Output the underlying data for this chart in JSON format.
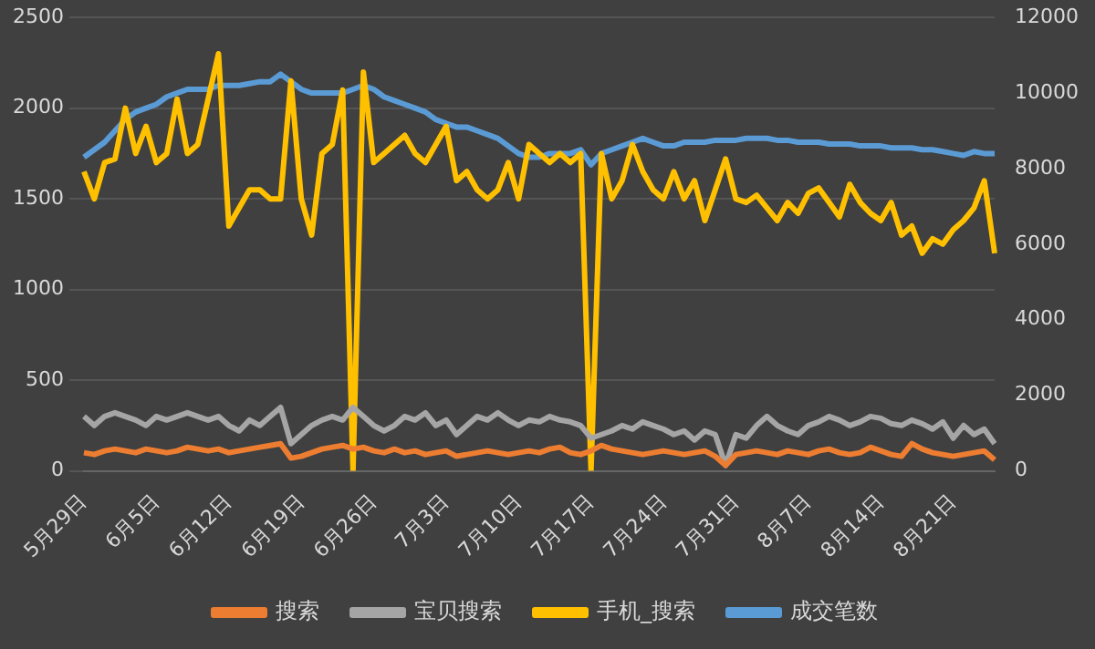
{
  "chart_data": {
    "type": "line",
    "categories": [
      "5月29日",
      null,
      null,
      null,
      null,
      null,
      null,
      "6月5日",
      null,
      null,
      null,
      null,
      null,
      null,
      "6月12日",
      null,
      null,
      null,
      null,
      null,
      null,
      "6月19日",
      null,
      null,
      null,
      null,
      null,
      null,
      "6月26日",
      null,
      null,
      null,
      null,
      null,
      null,
      "7月3日",
      null,
      null,
      null,
      null,
      null,
      null,
      "7月10日",
      null,
      null,
      null,
      null,
      null,
      null,
      "7月17日",
      null,
      null,
      null,
      null,
      null,
      null,
      "7月24日",
      null,
      null,
      null,
      null,
      null,
      null,
      "7月31日",
      null,
      null,
      null,
      null,
      null,
      null,
      "8月7日",
      null,
      null,
      null,
      null,
      null,
      null,
      "8月14日",
      null,
      null,
      null,
      null,
      null,
      null,
      "8月21日",
      null,
      null,
      null,
      null
    ],
    "series": [
      {
        "name": "搜索",
        "color": "#ed7d31",
        "values": [
          100,
          90,
          110,
          120,
          110,
          100,
          120,
          110,
          100,
          110,
          130,
          120,
          110,
          120,
          100,
          110,
          120,
          130,
          140,
          150,
          70,
          80,
          100,
          120,
          130,
          140,
          120,
          130,
          110,
          100,
          120,
          100,
          110,
          90,
          100,
          110,
          80,
          90,
          100,
          110,
          100,
          90,
          100,
          110,
          100,
          120,
          130,
          100,
          90,
          110,
          140,
          120,
          110,
          100,
          90,
          100,
          110,
          100,
          90,
          100,
          110,
          80,
          30,
          90,
          100,
          110,
          100,
          90,
          110,
          100,
          90,
          110,
          120,
          100,
          90,
          100,
          130,
          110,
          90,
          80,
          150,
          120,
          100,
          90,
          80,
          90,
          100,
          110,
          60
        ]
      },
      {
        "name": "宝贝搜索",
        "color": "#a5a5a5",
        "values": [
          300,
          250,
          300,
          320,
          300,
          280,
          250,
          300,
          280,
          300,
          320,
          300,
          280,
          300,
          250,
          220,
          280,
          250,
          300,
          350,
          150,
          200,
          250,
          280,
          300,
          280,
          350,
          300,
          250,
          220,
          250,
          300,
          280,
          320,
          250,
          280,
          200,
          250,
          300,
          280,
          320,
          280,
          250,
          280,
          270,
          300,
          280,
          270,
          250,
          180,
          200,
          220,
          250,
          230,
          270,
          250,
          230,
          200,
          220,
          170,
          220,
          200,
          30,
          200,
          180,
          250,
          300,
          250,
          220,
          200,
          250,
          270,
          300,
          280,
          250,
          270,
          300,
          290,
          260,
          250,
          280,
          260,
          230,
          270,
          180,
          250,
          200,
          230,
          150
        ]
      },
      {
        "name": "手机_搜索",
        "color": "#ffc000",
        "values": [
          1650,
          1500,
          1700,
          1720,
          2000,
          1750,
          1900,
          1700,
          1750,
          2050,
          1750,
          1800,
          2050,
          2300,
          1350,
          1450,
          1550,
          1550,
          1500,
          1500,
          2150,
          1500,
          1300,
          1750,
          1800,
          2100,
          0,
          2200,
          1700,
          1750,
          1800,
          1850,
          1750,
          1700,
          1800,
          1900,
          1600,
          1650,
          1550,
          1500,
          1550,
          1700,
          1500,
          1800,
          1750,
          1700,
          1750,
          1700,
          1750,
          0,
          1750,
          1500,
          1600,
          1800,
          1650,
          1550,
          1500,
          1650,
          1500,
          1600,
          1380,
          1550,
          1720,
          1500,
          1480,
          1520,
          1450,
          1380,
          1480,
          1420,
          1530,
          1560,
          1480,
          1400,
          1580,
          1480,
          1420,
          1380,
          1480,
          1300,
          1350,
          1200,
          1280,
          1250,
          1330,
          1380,
          1450,
          1600,
          1200
        ]
      },
      {
        "name": "成交笔数",
        "color": "#5b9bd5",
        "axis": "y2",
        "values": [
          8300,
          8500,
          8700,
          9000,
          9300,
          9500,
          9600,
          9700,
          9900,
          10000,
          10100,
          10100,
          10100,
          10200,
          10200,
          10200,
          10250,
          10300,
          10300,
          10500,
          10300,
          10100,
          10000,
          10000,
          10000,
          10000,
          10100,
          10200,
          10100,
          9900,
          9800,
          9700,
          9600,
          9500,
          9300,
          9200,
          9100,
          9100,
          9000,
          8900,
          8800,
          8600,
          8400,
          8300,
          8300,
          8400,
          8400,
          8400,
          8500,
          8100,
          8400,
          8500,
          8600,
          8700,
          8800,
          8700,
          8600,
          8600,
          8700,
          8700,
          8700,
          8750,
          8750,
          8750,
          8800,
          8800,
          8800,
          8750,
          8750,
          8700,
          8700,
          8700,
          8650,
          8650,
          8650,
          8600,
          8600,
          8600,
          8550,
          8550,
          8550,
          8500,
          8500,
          8450,
          8400,
          8350,
          8450,
          8400,
          8400
        ]
      }
    ],
    "ylim": [
      0,
      2500
    ],
    "yticks": [
      0,
      500,
      1000,
      1500,
      2000,
      2500
    ],
    "y2lim": [
      0,
      12000
    ],
    "y2ticks": [
      0,
      2000,
      4000,
      6000,
      8000,
      10000,
      12000
    ],
    "grid": "y",
    "legend": "bottom",
    "marker": "none",
    "line_style": "solid"
  }
}
